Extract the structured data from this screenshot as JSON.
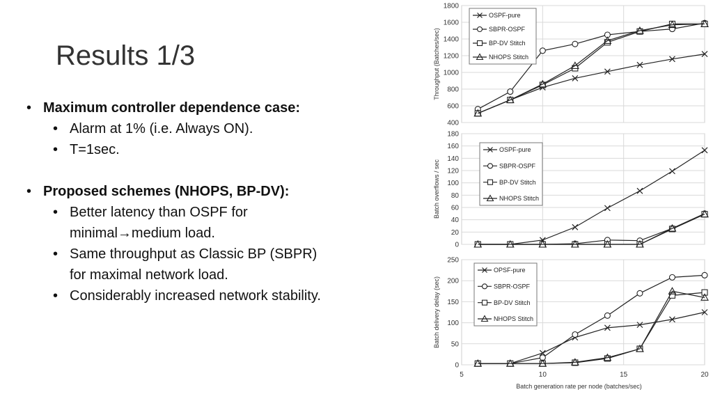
{
  "slide": {
    "title": "Results 1/3",
    "bullets": {
      "b1": "Maximum controller dependence case:",
      "b1_1": "Alarm at 1% (i.e. Always ON).",
      "b1_2": "T=1sec.",
      "b2": "Proposed schemes (NHOPS, BP-DV):",
      "b2_1_line1": "Better latency than OSPF for",
      "b2_1_line2a": "minimal",
      "b2_1_arrow": "→",
      "b2_1_line2b": "medium load.",
      "b2_2_line1": "Same throughput as Classic BP (SBPR)",
      "b2_2_line2": "for maximal network load.",
      "b2_3": "Considerably increased network stability."
    }
  },
  "chart_data": [
    {
      "type": "line",
      "xlabel": "",
      "ylabel": "Throughput (Batches/sec)",
      "xlim": [
        5,
        20
      ],
      "ylim": [
        400,
        1800
      ],
      "yticks": [
        400,
        600,
        800,
        1000,
        1200,
        1400,
        1600,
        1800
      ],
      "grid": true,
      "legend": "top-left",
      "x": [
        6,
        8,
        10,
        12,
        14,
        16,
        18,
        20
      ],
      "series": [
        {
          "name": "OSPF-pure",
          "marker": "x",
          "values": [
            510,
            670,
            820,
            930,
            1010,
            1090,
            1160,
            1220
          ]
        },
        {
          "name": "SBPR-OSPF",
          "marker": "circle",
          "values": [
            560,
            770,
            1260,
            1340,
            1450,
            1490,
            1520,
            1590
          ]
        },
        {
          "name": "BP-DV Stitch",
          "marker": "square",
          "values": [
            510,
            670,
            850,
            1050,
            1360,
            1490,
            1580,
            1580
          ]
        },
        {
          "name": "NHOPS Stitch",
          "marker": "triangle",
          "values": [
            510,
            670,
            860,
            1080,
            1380,
            1500,
            1570,
            1580
          ]
        }
      ]
    },
    {
      "type": "line",
      "xlabel": "",
      "ylabel": "Batch overflows / sec",
      "xlim": [
        5,
        20
      ],
      "ylim": [
        0,
        180
      ],
      "yticks": [
        0,
        20,
        40,
        60,
        80,
        100,
        120,
        140,
        160,
        180
      ],
      "grid": true,
      "legend": "top-left",
      "x": [
        6,
        8,
        10,
        12,
        14,
        16,
        18,
        20
      ],
      "series": [
        {
          "name": "OSPF-pure",
          "marker": "x",
          "values": [
            0,
            0,
            7,
            28,
            59,
            87,
            119,
            153
          ]
        },
        {
          "name": "SBPR-OSPF",
          "marker": "circle",
          "values": [
            0,
            0,
            0,
            1,
            7,
            6,
            26,
            50
          ]
        },
        {
          "name": "BP-DV Stitch",
          "marker": "square",
          "values": [
            0,
            0,
            0,
            0,
            0,
            0,
            25,
            49
          ]
        },
        {
          "name": "NHOPS Stitch",
          "marker": "triangle",
          "values": [
            0,
            0,
            0,
            0,
            0,
            0,
            26,
            49
          ]
        }
      ]
    },
    {
      "type": "line",
      "xlabel": "Batch generation rate per node (batches/sec)",
      "ylabel": "Batch delivery delay (sec)",
      "xlim": [
        5,
        20
      ],
      "ylim": [
        0,
        250
      ],
      "xticks": [
        5,
        10,
        15,
        20
      ],
      "yticks": [
        0,
        50,
        100,
        150,
        200,
        250
      ],
      "grid": true,
      "legend": "top-left",
      "x": [
        6,
        8,
        10,
        12,
        14,
        16,
        18,
        20
      ],
      "series": [
        {
          "name": "OPSF-pure",
          "marker": "x",
          "values": [
            3,
            3,
            28,
            65,
            88,
            95,
            108,
            125
          ]
        },
        {
          "name": "SBPR-OSPF",
          "marker": "circle",
          "values": [
            3,
            3,
            17,
            72,
            117,
            170,
            208,
            213
          ]
        },
        {
          "name": "BP-DV Stitch",
          "marker": "square",
          "values": [
            3,
            3,
            3,
            5,
            15,
            38,
            165,
            172
          ]
        },
        {
          "name": "NHOPS Stitch",
          "marker": "triangle",
          "values": [
            3,
            3,
            3,
            6,
            17,
            38,
            175,
            160
          ]
        }
      ]
    }
  ]
}
